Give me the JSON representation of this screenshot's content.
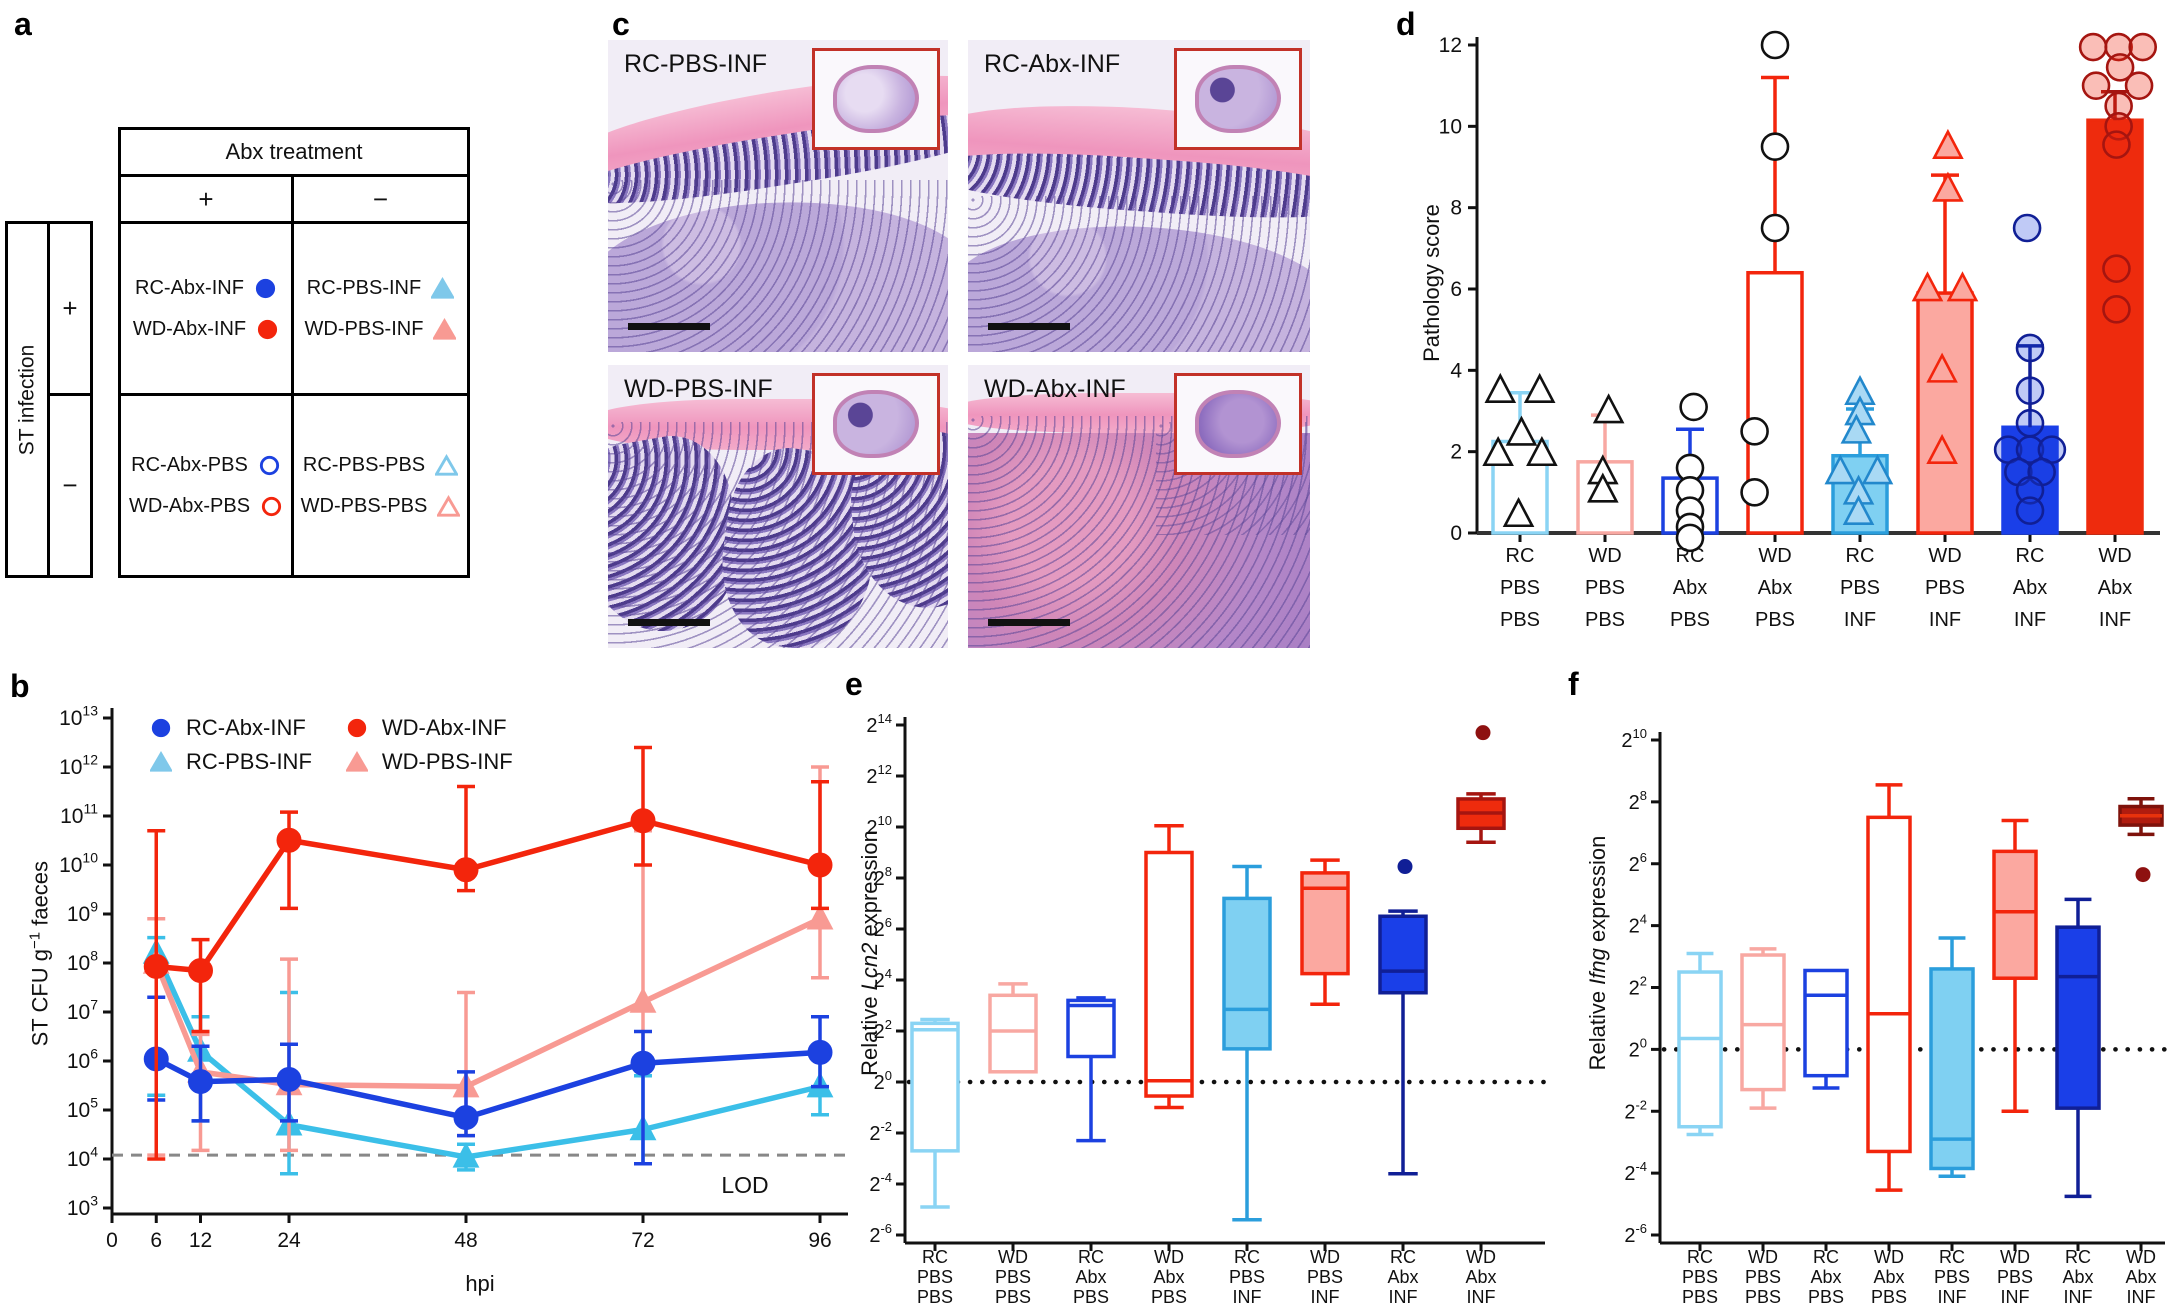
{
  "figure": {
    "panel_letters": {
      "a": "a",
      "b": "b",
      "c": "c",
      "d": "d",
      "e": "e",
      "f": "f"
    }
  },
  "colors": {
    "blue": "#1C41E0",
    "red": "#F3250C",
    "cyan_line": "#3BBFE8",
    "salmon": "#F89A93",
    "lightblue_fill": "#7FD0F2",
    "lightblue_edge": "#8AD4F4",
    "mid_blue_edge": "#2B9EDC",
    "salmon_fill": "#FBA8A0",
    "salmon_edge": "#F8A8A2",
    "navy": "#101F96",
    "dark_red": "#A51510",
    "bright_red_fill": "#EE2B0D",
    "f8_fill": "#B01C0F",
    "f8_edge": "#7E120B",
    "lod_gray": "#888888"
  },
  "panels": {
    "a": {
      "col_header": "Abx treatment",
      "col_plus": "+",
      "col_minus": "−",
      "row_header": "ST infection",
      "row_plus": "+",
      "row_minus": "−",
      "cells": {
        "plus_plus": [
          {
            "label": "RC-Abx-INF",
            "marker": "circle",
            "open": false,
            "color": "#1C41E0"
          },
          {
            "label": "WD-Abx-INF",
            "marker": "circle",
            "open": false,
            "color": "#F3250C"
          }
        ],
        "plus_minus": [
          {
            "label": "RC-PBS-INF",
            "marker": "triangle",
            "open": false,
            "color": "#7FC8EA"
          },
          {
            "label": "WD-PBS-INF",
            "marker": "triangle",
            "open": false,
            "color": "#F89A93"
          }
        ],
        "minus_plus": [
          {
            "label": "RC-Abx-PBS",
            "marker": "circle",
            "open": true,
            "color": "#1C41E0"
          },
          {
            "label": "WD-Abx-PBS",
            "marker": "circle",
            "open": true,
            "color": "#F3250C"
          }
        ],
        "minus_minus": [
          {
            "label": "RC-PBS-PBS",
            "marker": "triangle",
            "open": true,
            "color": "#7FC8EA"
          },
          {
            "label": "WD-PBS-PBS",
            "marker": "triangle",
            "open": true,
            "color": "#F89A93"
          }
        ]
      }
    },
    "c": {
      "images": [
        {
          "label": "RC-PBS-INF",
          "variant": "rc-pbs"
        },
        {
          "label": "RC-Abx-INF",
          "variant": "rc-abx"
        },
        {
          "label": "WD-PBS-INF",
          "variant": "wd-pbs"
        },
        {
          "label": "WD-Abx-INF",
          "variant": "wd-abx"
        }
      ]
    }
  },
  "chart_data": [
    {
      "panel": "b",
      "type": "line",
      "xlabel": "hpi",
      "ylabel_parts": [
        "ST CFU g",
        "−1",
        " faeces"
      ],
      "x_ticks": [
        0,
        6,
        12,
        24,
        48,
        72,
        96
      ],
      "y_scale": "log10",
      "y_exponent_range": [
        3,
        13
      ],
      "lod_value": 12000,
      "lod_label": "LOD",
      "legend": [
        {
          "name": "RC-Abx-INF",
          "marker": "circle",
          "color": "#1C41E0"
        },
        {
          "name": "WD-Abx-INF",
          "marker": "circle",
          "color": "#F3250C"
        },
        {
          "name": "RC-PBS-INF",
          "marker": "triangle",
          "color": "#7FC8EA"
        },
        {
          "name": "WD-PBS-INF",
          "marker": "triangle",
          "color": "#F89A93"
        }
      ],
      "series": [
        {
          "name": "RC-Abx-INF",
          "marker": "circle",
          "color": "#1C41E0",
          "x": [
            6,
            12,
            24,
            48,
            72,
            96
          ],
          "y": [
            1100000,
            380000,
            420000,
            70000,
            900000,
            1500000
          ],
          "lo": [
            160000,
            60000,
            60000,
            30000,
            8000,
            300000
          ],
          "hi": [
            20000000,
            2000000,
            2200000,
            600000,
            4000000,
            8000000
          ]
        },
        {
          "name": "WD-Abx-INF",
          "marker": "circle",
          "color": "#F3250C",
          "x": [
            6,
            12,
            24,
            48,
            72,
            96
          ],
          "y": [
            85000000,
            70000000,
            32000000000,
            8000000000,
            80000000000,
            10000000000
          ],
          "lo": [
            10000,
            4000000,
            1300000000,
            3000000000,
            10000000000,
            1300000000
          ],
          "hi": [
            50000000000,
            300000000,
            120000000000,
            400000000000,
            2500000000000,
            500000000000
          ]
        },
        {
          "name": "RC-PBS-INF",
          "marker": "triangle",
          "color": "#3BBFE8",
          "x": [
            6,
            12,
            24,
            48,
            72,
            96
          ],
          "y": [
            160000000,
            1600000,
            50000,
            11000,
            40000,
            300000
          ],
          "lo": [
            200000,
            60000,
            5000,
            6000,
            8000,
            80000
          ],
          "hi": [
            330000000,
            8000000,
            25000000,
            20000,
            500000,
            1200000
          ]
        },
        {
          "name": "WD-PBS-INF",
          "marker": "triangle",
          "color": "#F89A93",
          "x": [
            6,
            12,
            24,
            48,
            72,
            96
          ],
          "y": [
            100000000,
            600000,
            330000,
            300000,
            16000000,
            800000000
          ],
          "lo": [
            12000,
            15000,
            15000,
            30000,
            900000,
            50000000
          ],
          "hi": [
            800000000,
            3500000,
            120000000,
            25000000,
            50000000000,
            1000000000000
          ]
        }
      ]
    },
    {
      "panel": "d",
      "type": "bar_scatter",
      "ylabel": "Pathology score",
      "ylim": [
        0,
        12
      ],
      "yticks": [
        0,
        2,
        4,
        6,
        8,
        10,
        12
      ],
      "groups": [
        {
          "label_lines": [
            "RC",
            "PBS",
            "PBS"
          ],
          "bar": 2.25,
          "err_hi": 3.45,
          "fill": "#ffffff",
          "edge": "#8AD4F4",
          "point_marker": "triangle",
          "pfill": "#ffffff",
          "pedge": "#111111",
          "points": [
            [
              -0.27,
              3.5
            ],
            [
              0.27,
              3.5
            ],
            [
              0.02,
              2.45
            ],
            [
              -0.3,
              1.95
            ],
            [
              0.3,
              1.95
            ],
            [
              -0.02,
              0.45
            ]
          ]
        },
        {
          "label_lines": [
            "WD",
            "PBS",
            "PBS"
          ],
          "bar": 1.75,
          "err_hi": 2.9,
          "fill": "#ffffff",
          "edge": "#F8A8A2",
          "point_marker": "triangle",
          "pfill": "#ffffff",
          "pedge": "#111111",
          "points": [
            [
              0.05,
              3.0
            ],
            [
              -0.03,
              1.5
            ],
            [
              -0.03,
              1.05
            ]
          ]
        },
        {
          "label_lines": [
            "RC",
            "Abx",
            "PBS"
          ],
          "bar": 1.35,
          "err_hi": 2.55,
          "fill": "#ffffff",
          "edge": "#1C41E0",
          "point_marker": "circle",
          "pfill": "#ffffff",
          "pedge": "#111111",
          "points": [
            [
              0.05,
              3.1
            ],
            [
              0,
              1.6
            ],
            [
              0,
              1.05
            ],
            [
              0,
              0.55
            ],
            [
              0,
              0.15
            ],
            [
              0,
              -0.12
            ]
          ]
        },
        {
          "label_lines": [
            "WD",
            "Abx",
            "PBS"
          ],
          "bar": 6.4,
          "err_hi": 11.2,
          "fill": "#ffffff",
          "edge": "#F3250C",
          "point_marker": "circle",
          "pfill": "#ffffff",
          "pedge": "#111111",
          "points": [
            [
              0,
              12
            ],
            [
              0,
              9.5
            ],
            [
              0,
              7.5
            ],
            [
              -0.28,
              2.5
            ],
            [
              -0.28,
              1.0
            ]
          ]
        },
        {
          "label_lines": [
            "RC",
            "PBS",
            "INF"
          ],
          "bar": 1.9,
          "err_hi": 3.05,
          "fill": "#7FD0F2",
          "edge": "#2B9EDC",
          "point_marker": "triangle",
          "pfill": "#A9D9F4",
          "pedge": "#2288CC",
          "points": [
            [
              0,
              3.45
            ],
            [
              0,
              2.95
            ],
            [
              -0.05,
              2.5
            ],
            [
              -0.27,
              1.5
            ],
            [
              0.24,
              1.5
            ],
            [
              -0.02,
              1.0
            ],
            [
              -0.02,
              0.5
            ]
          ]
        },
        {
          "label_lines": [
            "WD",
            "PBS",
            "INF"
          ],
          "bar": 5.9,
          "err_hi": 8.8,
          "fill": "#FBA8A0",
          "edge": "#F3250C",
          "point_marker": "triangle",
          "pfill": "#FBA8A0",
          "pedge": "#F3250C",
          "points": [
            [
              0.04,
              9.5
            ],
            [
              0.04,
              8.45
            ],
            [
              -0.24,
              6.0
            ],
            [
              0.24,
              6.0
            ],
            [
              -0.04,
              4.0
            ],
            [
              -0.04,
              2.0
            ]
          ]
        },
        {
          "label_lines": [
            "RC",
            "Abx",
            "INF"
          ],
          "bar": 2.6,
          "err_hi": 4.6,
          "fill": "#1A3FE8",
          "edge": "#1A3FE8",
          "whisker": "#101F96",
          "point_marker": "circle",
          "pfill": "rgba(28,65,224,0.28)",
          "pedge": "#101F96",
          "points": [
            [
              -0.04,
              7.5
            ],
            [
              0,
              4.55
            ],
            [
              0,
              3.5
            ],
            [
              0,
              2.7
            ],
            [
              -0.3,
              2.05
            ],
            [
              0,
              2.05
            ],
            [
              0.3,
              2.05
            ],
            [
              -0.16,
              1.5
            ],
            [
              0.16,
              1.5
            ],
            [
              0,
              1.05
            ],
            [
              0,
              0.55
            ]
          ]
        },
        {
          "label_lines": [
            "WD",
            "Abx",
            "INF"
          ],
          "bar": 10.15,
          "err_hi": 10.85,
          "fill": "#EE2B0D",
          "edge": "#EE2B0D",
          "whisker": "#A51510",
          "point_marker": "circle",
          "pfill": "rgba(240,40,16,0.3)",
          "pedge": "#A51510",
          "points": [
            [
              -0.3,
              11.95
            ],
            [
              0.05,
              11.95
            ],
            [
              0.38,
              11.95
            ],
            [
              0.07,
              11.45
            ],
            [
              -0.26,
              11.0
            ],
            [
              0.33,
              11.0
            ],
            [
              0.05,
              10.5
            ],
            [
              0.05,
              10.0
            ],
            [
              0.02,
              9.55
            ],
            [
              0.02,
              6.5
            ],
            [
              0.02,
              5.5
            ]
          ]
        }
      ]
    },
    {
      "panel": "e",
      "type": "box",
      "ylabel_parts": [
        "Relative ",
        "Lcn2",
        " expression"
      ],
      "y_scale": "log2",
      "y_exponent_range": [
        -6,
        14
      ],
      "y_tick_step": 2,
      "baseline_exponent": 0,
      "groups": [
        {
          "label_lines": [
            "RC",
            "PBS",
            "PBS"
          ],
          "lo": -4.9,
          "q1": -2.7,
          "med": 2.05,
          "q3": 2.3,
          "hi": 2.45,
          "outliers": [],
          "fill": "#ffffff",
          "edge": "#8AD4F4"
        },
        {
          "label_lines": [
            "WD",
            "PBS",
            "PBS"
          ],
          "lo": 0.4,
          "q1": 0.4,
          "med": 2.0,
          "q3": 3.4,
          "hi": 3.85,
          "outliers": [],
          "fill": "#ffffff",
          "edge": "#F8A8A2"
        },
        {
          "label_lines": [
            "RC",
            "Abx",
            "PBS"
          ],
          "lo": -2.3,
          "q1": 1.0,
          "med": 3.0,
          "q3": 3.2,
          "hi": 3.3,
          "outliers": [],
          "fill": "#ffffff",
          "edge": "#1C41E0"
        },
        {
          "label_lines": [
            "WD",
            "Abx",
            "PBS"
          ],
          "lo": -1.0,
          "q1": -0.55,
          "med": 0.05,
          "q3": 9.0,
          "hi": 10.05,
          "outliers": [],
          "fill": "#ffffff",
          "edge": "#F3250C"
        },
        {
          "label_lines": [
            "RC",
            "PBS",
            "INF"
          ],
          "lo": -5.4,
          "q1": 1.3,
          "med": 2.85,
          "q3": 7.2,
          "hi": 8.45,
          "outliers": [],
          "fill": "#7FD0F2",
          "edge": "#2B9EDC"
        },
        {
          "label_lines": [
            "WD",
            "PBS",
            "INF"
          ],
          "lo": 3.05,
          "q1": 4.25,
          "med": 7.6,
          "q3": 8.2,
          "hi": 8.7,
          "outliers": [],
          "fill": "#FBA8A0",
          "edge": "#F3250C"
        },
        {
          "label_lines": [
            "RC",
            "Abx",
            "INF"
          ],
          "lo": -3.6,
          "q1": 3.5,
          "med": 4.35,
          "q3": 6.5,
          "hi": 6.7,
          "outliers": [
            8.45
          ],
          "ocolor": "#101F96",
          "fill": "#1A3FE8",
          "edge": "#101F96"
        },
        {
          "label_lines": [
            "WD",
            "Abx",
            "INF"
          ],
          "lo": 9.4,
          "q1": 9.95,
          "med": 10.55,
          "q3": 11.1,
          "hi": 11.3,
          "outliers": [
            13.7
          ],
          "ocolor": "#8E1110",
          "fill": "#EE2B0D",
          "edge": "#A51510"
        }
      ]
    },
    {
      "panel": "f",
      "type": "box",
      "ylabel_parts": [
        "Relative ",
        "Ifng",
        " expression"
      ],
      "y_scale": "log2",
      "y_exponent_range": [
        -6,
        10
      ],
      "y_tick_step": 2,
      "baseline_exponent": 0,
      "groups": [
        {
          "label_lines": [
            "RC",
            "PBS",
            "PBS"
          ],
          "lo": -2.75,
          "q1": -2.5,
          "med": 0.35,
          "q3": 2.5,
          "hi": 3.1,
          "outliers": [],
          "fill": "#ffffff",
          "edge": "#8AD4F4"
        },
        {
          "label_lines": [
            "WD",
            "PBS",
            "PBS"
          ],
          "lo": -1.9,
          "q1": -1.3,
          "med": 0.8,
          "q3": 3.05,
          "hi": 3.25,
          "outliers": [],
          "fill": "#ffffff",
          "edge": "#F8A8A2"
        },
        {
          "label_lines": [
            "RC",
            "Abx",
            "PBS"
          ],
          "lo": -1.25,
          "q1": -0.85,
          "med": 1.75,
          "q3": 2.55,
          "hi": 2.55,
          "outliers": [],
          "fill": "#ffffff",
          "edge": "#1C41E0"
        },
        {
          "label_lines": [
            "WD",
            "Abx",
            "PBS"
          ],
          "lo": -4.55,
          "q1": -3.3,
          "med": 1.15,
          "q3": 7.5,
          "hi": 8.55,
          "outliers": [],
          "fill": "#ffffff",
          "edge": "#F3250C"
        },
        {
          "label_lines": [
            "RC",
            "PBS",
            "INF"
          ],
          "lo": -4.1,
          "q1": -3.85,
          "med": -2.9,
          "q3": 2.6,
          "hi": 3.6,
          "outliers": [],
          "fill": "#7FD0F2",
          "edge": "#2B9EDC"
        },
        {
          "label_lines": [
            "WD",
            "PBS",
            "INF"
          ],
          "lo": -2.0,
          "q1": 2.3,
          "med": 4.45,
          "q3": 6.4,
          "hi": 7.4,
          "outliers": [],
          "fill": "#FBA8A0",
          "edge": "#F3250C"
        },
        {
          "label_lines": [
            "RC",
            "Abx",
            "INF"
          ],
          "lo": -4.75,
          "q1": -1.9,
          "med": 2.35,
          "q3": 3.95,
          "hi": 4.85,
          "outliers": [],
          "fill": "#1A3FE8",
          "edge": "#101F96"
        },
        {
          "label_lines": [
            "WD",
            "Abx",
            "INF"
          ],
          "lo": 6.95,
          "q1": 7.25,
          "med": 7.55,
          "q3": 7.85,
          "hi": 8.1,
          "outliers": [
            5.65
          ],
          "ocolor": "#8E1110",
          "fill": "#B01C0F",
          "edge": "#7E120B",
          "median_color": "#E8320C"
        }
      ]
    }
  ]
}
